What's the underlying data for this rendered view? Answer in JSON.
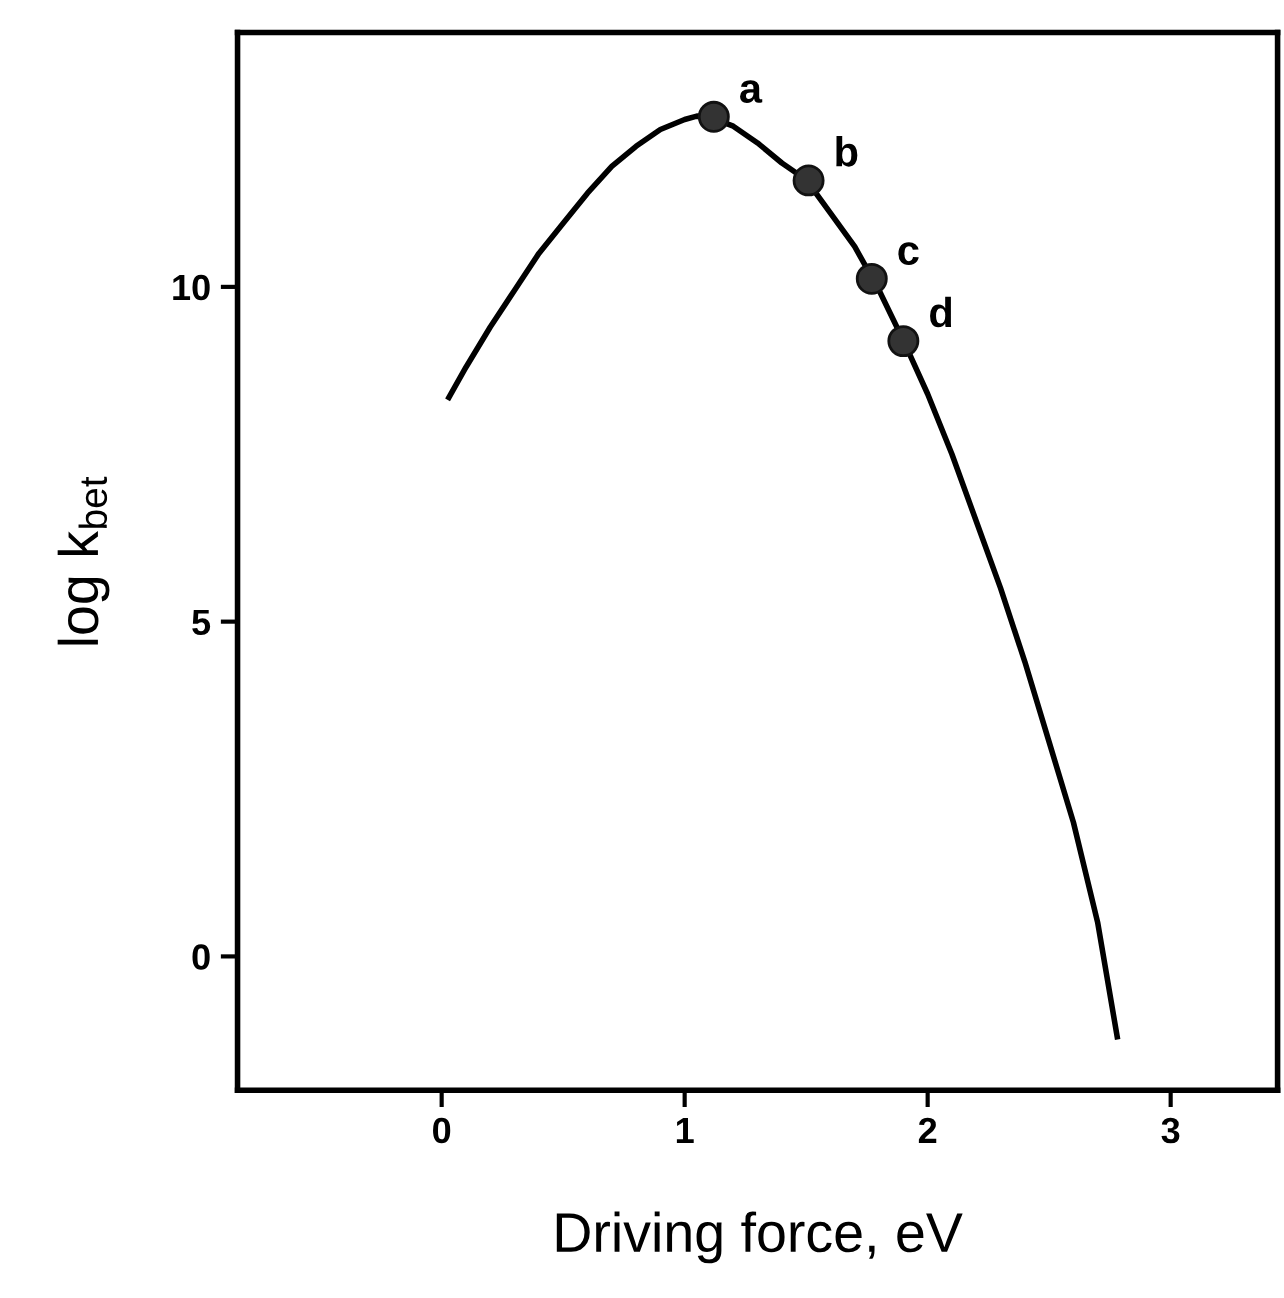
{
  "chart_data": {
    "type": "line",
    "xlabel": "Driving force, eV",
    "ylabel": "log k$_{bet}$",
    "xlim": [
      -0.84,
      3.44
    ],
    "ylim": [
      -2,
      13.8
    ],
    "xticks": [
      0,
      1,
      2,
      3
    ],
    "yticks": [
      0,
      5,
      10
    ],
    "grid": false,
    "legend": false,
    "series": [
      {
        "color": "#000000",
        "marker": "none",
        "line_style": "solid",
        "x": [
          0.03,
          0.1,
          0.2,
          0.3,
          0.4,
          0.5,
          0.6,
          0.7,
          0.8,
          0.9,
          1.0,
          1.05,
          1.1,
          1.2,
          1.3,
          1.4,
          1.5,
          1.6,
          1.7,
          1.8,
          1.9,
          2.0,
          2.1,
          2.2,
          2.3,
          2.4,
          2.5,
          2.6,
          2.7,
          2.78
        ],
        "values": [
          8.35,
          8.8,
          9.4,
          9.95,
          10.5,
          10.95,
          11.4,
          11.8,
          12.1,
          12.35,
          12.5,
          12.55,
          12.54,
          12.4,
          12.15,
          11.85,
          11.6,
          11.1,
          10.6,
          9.95,
          9.2,
          8.4,
          7.5,
          6.5,
          5.5,
          4.4,
          3.2,
          2.0,
          0.5,
          -1.2
        ]
      },
      {
        "type": "scatter",
        "color": "#333333",
        "marker": "circle",
        "x": [
          1.12,
          1.51,
          1.77,
          1.9
        ],
        "values": [
          12.54,
          11.59,
          10.12,
          9.19
        ]
      }
    ],
    "annotations": [
      {
        "text": "a",
        "x": 1.12,
        "y": 12.54
      },
      {
        "text": "b",
        "x": 1.51,
        "y": 11.59
      },
      {
        "text": "c",
        "x": 1.77,
        "y": 10.12
      },
      {
        "text": "d",
        "x": 1.9,
        "y": 9.19
      }
    ]
  }
}
